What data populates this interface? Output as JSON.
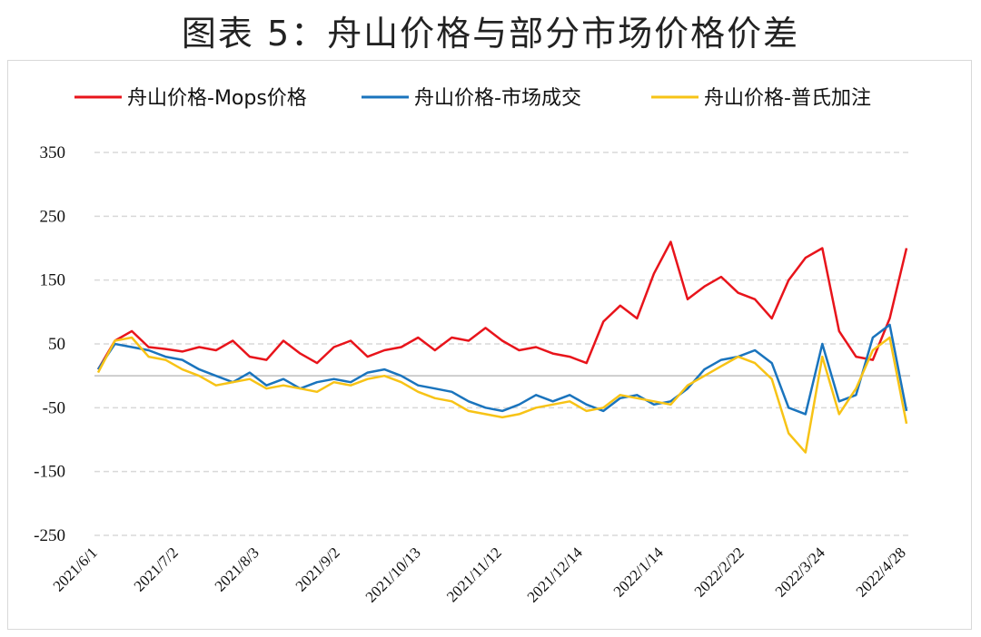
{
  "title": "图表 5：舟山价格与部分市场价格价差",
  "chart_data": {
    "type": "line",
    "title": "图表 5：舟山价格与部分市场价格价差",
    "xlabel": "",
    "ylabel": "",
    "ylim": [
      -250,
      400
    ],
    "yticks": [
      350,
      250,
      150,
      50,
      -50,
      -150,
      -250
    ],
    "grid": true,
    "legend_position": "top",
    "x_tick_labels": [
      "2021/6/1",
      "2021/7/2",
      "2021/8/3",
      "2021/9/2",
      "2021/10/13",
      "2021/11/12",
      "2021/12/14",
      "2022/1/14",
      "2022/2/22",
      "2022/3/24",
      "2022/4/28"
    ],
    "x": [
      "2021/6/1",
      "2021/6/8",
      "2021/6/15",
      "2021/6/22",
      "2021/6/29",
      "2021/7/6",
      "2021/7/13",
      "2021/7/20",
      "2021/7/27",
      "2021/8/3",
      "2021/8/10",
      "2021/8/17",
      "2021/8/24",
      "2021/8/31",
      "2021/9/7",
      "2021/9/14",
      "2021/9/21",
      "2021/9/28",
      "2021/10/5",
      "2021/10/12",
      "2021/10/19",
      "2021/10/26",
      "2021/11/2",
      "2021/11/9",
      "2021/11/16",
      "2021/11/23",
      "2021/11/30",
      "2021/12/7",
      "2021/12/14",
      "2021/12/21",
      "2021/12/28",
      "2022/1/4",
      "2022/1/11",
      "2022/1/18",
      "2022/1/25",
      "2022/2/1",
      "2022/2/8",
      "2022/2/15",
      "2022/2/22",
      "2022/3/1",
      "2022/3/8",
      "2022/3/15",
      "2022/3/22",
      "2022/3/29",
      "2022/4/5",
      "2022/4/12",
      "2022/4/19",
      "2022/4/26",
      "2022/5/3"
    ],
    "series": [
      {
        "name": "舟山价格-Mops价格",
        "color": "#e8141b",
        "values": [
          10,
          55,
          70,
          45,
          42,
          38,
          45,
          40,
          55,
          30,
          25,
          55,
          35,
          20,
          45,
          55,
          30,
          40,
          45,
          60,
          40,
          60,
          55,
          75,
          55,
          40,
          45,
          35,
          30,
          20,
          85,
          110,
          90,
          160,
          210,
          120,
          140,
          155,
          130,
          120,
          90,
          150,
          185,
          200,
          70,
          30,
          25,
          90,
          200
        ]
      },
      {
        "name": "舟山价格-市场成交",
        "color": "#1a74bd",
        "values": [
          10,
          50,
          45,
          40,
          30,
          25,
          10,
          0,
          -10,
          5,
          -15,
          -5,
          -20,
          -10,
          -5,
          -10,
          5,
          10,
          0,
          -15,
          -20,
          -25,
          -40,
          -50,
          -55,
          -45,
          -30,
          -40,
          -30,
          -45,
          -55,
          -35,
          -30,
          -45,
          -40,
          -20,
          10,
          25,
          30,
          40,
          20,
          -50,
          -60,
          50,
          -40,
          -30,
          60,
          80,
          -55
        ]
      },
      {
        "name": "舟山价格-普氏加注",
        "color": "#f7c316",
        "values": [
          5,
          55,
          60,
          30,
          25,
          10,
          0,
          -15,
          -10,
          -5,
          -20,
          -15,
          -20,
          -25,
          -10,
          -15,
          -5,
          0,
          -10,
          -25,
          -35,
          -40,
          -55,
          -60,
          -65,
          -60,
          -50,
          -45,
          -40,
          -55,
          -50,
          -30,
          -35,
          -40,
          -45,
          -15,
          0,
          15,
          30,
          20,
          -5,
          -90,
          -120,
          30,
          -60,
          -20,
          40,
          60,
          -75
        ]
      }
    ]
  }
}
